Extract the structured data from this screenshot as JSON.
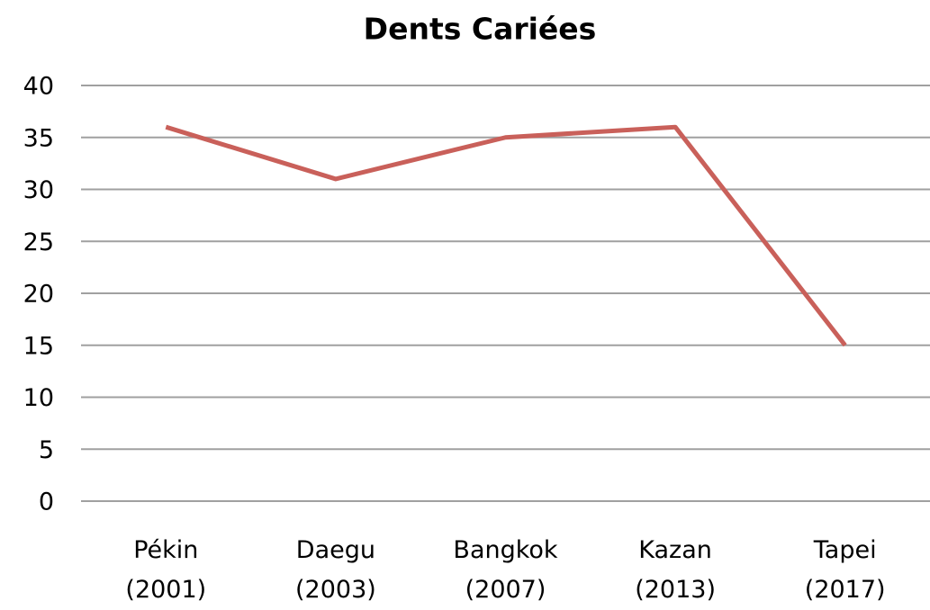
{
  "chart_data": {
    "type": "line",
    "title": "Dents Cariées",
    "categories": [
      "Pékin (2001)",
      "Daegu (2003)",
      "Bangkok (2007)",
      "Kazan (2013)",
      "Tapei (2017)"
    ],
    "series": [
      {
        "name": "Dents Cariées",
        "color": "#c9605a",
        "values": [
          36,
          31,
          35,
          36,
          15
        ]
      }
    ],
    "ylim": [
      0,
      40
    ],
    "yticks": [
      0,
      5,
      10,
      15,
      20,
      25,
      30,
      35,
      40
    ],
    "grid": true
  }
}
